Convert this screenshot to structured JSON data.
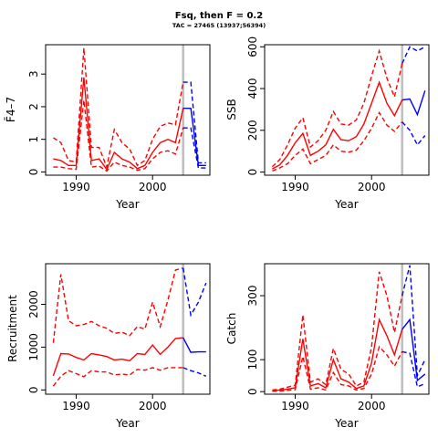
{
  "figure": {
    "title": "Fsq, then F = 0.2",
    "subtitle": "TAC = 27465 (13937;56394)"
  },
  "colors": {
    "history": "#ff0000",
    "projection": "#0000ff",
    "divider": "#bebebe",
    "axis": "#000000"
  },
  "chart_data": [
    {
      "id": "fbar",
      "type": "line",
      "xlabel": "Year",
      "ylabel": "F̄4–7",
      "xlim": [
        1986,
        2007.5
      ],
      "ylim": [
        -0.1,
        3.9
      ],
      "xticks": [
        1990,
        2000
      ],
      "yticks": [
        0,
        1,
        2,
        3
      ],
      "divider_year": 2004,
      "history": {
        "x": [
          1987,
          1988,
          1989,
          1990,
          1991,
          1992,
          1993,
          1994,
          1995,
          1996,
          1997,
          1998,
          1999,
          2000,
          2001,
          2002,
          2003,
          2004
        ],
        "median": [
          0.4,
          0.35,
          0.2,
          0.2,
          2.9,
          0.35,
          0.4,
          0.08,
          0.6,
          0.4,
          0.3,
          0.1,
          0.2,
          0.6,
          0.9,
          1.0,
          0.9,
          1.95
        ],
        "lower": [
          0.15,
          0.15,
          0.1,
          0.08,
          2.2,
          0.15,
          0.18,
          0.03,
          0.3,
          0.2,
          0.15,
          0.05,
          0.1,
          0.4,
          0.6,
          0.65,
          0.55,
          1.35
        ],
        "upper": [
          1.05,
          0.9,
          0.35,
          0.3,
          3.8,
          0.75,
          0.75,
          0.15,
          1.3,
          0.9,
          0.7,
          0.2,
          0.35,
          1.0,
          1.4,
          1.5,
          1.45,
          2.75
        ]
      },
      "projection": {
        "x": [
          2004,
          2005,
          2006,
          2007
        ],
        "median": [
          1.95,
          1.95,
          0.2,
          0.2
        ],
        "lower": [
          1.35,
          1.35,
          0.12,
          0.12
        ],
        "upper": [
          2.75,
          2.75,
          0.28,
          0.28
        ]
      }
    },
    {
      "id": "ssb",
      "type": "line",
      "xlabel": "Year",
      "ylabel": "SSB",
      "xlim": [
        1986,
        2007.5
      ],
      "ylim": [
        -15,
        610
      ],
      "xticks": [
        1990,
        2000
      ],
      "yticks": [
        0,
        200,
        400,
        600
      ],
      "divider_year": 2004,
      "history": {
        "x": [
          1987,
          1988,
          1989,
          1990,
          1991,
          1992,
          1993,
          1994,
          1995,
          1996,
          1997,
          1998,
          1999,
          2000,
          2001,
          2002,
          2003,
          2004
        ],
        "median": [
          15,
          35,
          80,
          140,
          185,
          80,
          100,
          130,
          205,
          155,
          150,
          170,
          230,
          330,
          430,
          330,
          270,
          345
        ],
        "lower": [
          5,
          20,
          40,
          80,
          110,
          40,
          60,
          80,
          130,
          100,
          95,
          105,
          150,
          210,
          285,
          225,
          195,
          240
        ],
        "upper": [
          25,
          60,
          130,
          210,
          260,
          120,
          150,
          200,
          290,
          230,
          225,
          250,
          330,
          460,
          580,
          450,
          360,
          520
        ]
      },
      "projection": {
        "x": [
          2004,
          2005,
          2006,
          2007
        ],
        "median": [
          345,
          350,
          275,
          390
        ],
        "lower": [
          240,
          200,
          130,
          175
        ],
        "upper": [
          520,
          600,
          580,
          600
        ]
      }
    },
    {
      "id": "recruitment",
      "type": "line",
      "xlabel": "Year",
      "ylabel": "Recruitment",
      "xlim": [
        1986,
        2007.5
      ],
      "ylim": [
        -100,
        2950
      ],
      "xticks": [
        1990,
        2000
      ],
      "yticks": [
        0,
        1000,
        2000
      ],
      "divider_year": 2004,
      "history": {
        "x": [
          1987,
          1988,
          1989,
          1990,
          1991,
          1992,
          1993,
          1994,
          1995,
          1996,
          1997,
          1998,
          1999,
          2000,
          2001,
          2002,
          2003,
          2004
        ],
        "median": [
          330,
          850,
          840,
          760,
          700,
          850,
          820,
          780,
          700,
          720,
          680,
          850,
          830,
          1050,
          830,
          1000,
          1200,
          1220
        ],
        "lower": [
          90,
          320,
          450,
          380,
          310,
          450,
          420,
          420,
          350,
          370,
          350,
          480,
          460,
          520,
          460,
          520,
          520,
          520
        ],
        "upper": [
          1100,
          2700,
          1620,
          1500,
          1530,
          1600,
          1500,
          1440,
          1320,
          1350,
          1270,
          1480,
          1420,
          2050,
          1480,
          2100,
          2800,
          2850
        ]
      },
      "projection": {
        "x": [
          2004,
          2005,
          2006,
          2007
        ],
        "median": [
          1220,
          880,
          890,
          890
        ],
        "lower": [
          520,
          450,
          400,
          320
        ],
        "upper": [
          2850,
          1750,
          2050,
          2500
        ]
      }
    },
    {
      "id": "catch",
      "type": "line",
      "xlabel": "Year",
      "ylabel": "Catch",
      "xlim": [
        1986,
        2007.5
      ],
      "ylim": [
        -8,
        400
      ],
      "xticks": [
        1990,
        2000
      ],
      "yticks": [
        0,
        100,
        300
      ],
      "divider_year": 2004,
      "history": {
        "x": [
          1987,
          1988,
          1989,
          1990,
          1991,
          1992,
          1993,
          1994,
          1995,
          1996,
          1997,
          1998,
          1999,
          2000,
          2001,
          2002,
          2003,
          2004
        ],
        "median": [
          3,
          5,
          8,
          12,
          165,
          18,
          25,
          12,
          100,
          40,
          30,
          10,
          18,
          90,
          225,
          175,
          115,
          195
        ],
        "lower": [
          1,
          2,
          4,
          6,
          110,
          8,
          12,
          5,
          60,
          22,
          18,
          5,
          10,
          55,
          140,
          115,
          80,
          125
        ],
        "upper": [
          5,
          8,
          14,
          20,
          240,
          30,
          40,
          22,
          135,
          70,
          55,
          18,
          30,
          140,
          375,
          300,
          185,
          300
        ]
      },
      "projection": {
        "x": [
          2004,
          2005,
          2006,
          2007
        ],
        "median": [
          195,
          225,
          35,
          55
        ],
        "lower": [
          125,
          120,
          15,
          25
        ],
        "upper": [
          300,
          395,
          50,
          100
        ]
      }
    }
  ]
}
